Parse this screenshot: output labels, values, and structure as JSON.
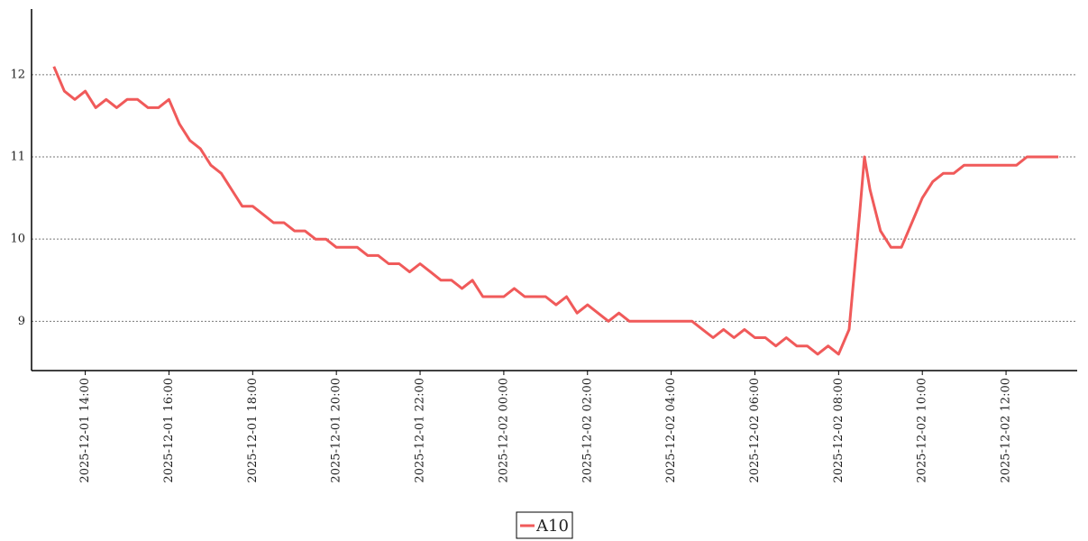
{
  "chart_data": {
    "type": "line",
    "x": [
      "2025-12-01 13:15",
      "2025-12-01 13:30",
      "2025-12-01 13:45",
      "2025-12-01 14:00",
      "2025-12-01 14:15",
      "2025-12-01 14:30",
      "2025-12-01 14:45",
      "2025-12-01 15:00",
      "2025-12-01 15:15",
      "2025-12-01 15:30",
      "2025-12-01 15:45",
      "2025-12-01 16:00",
      "2025-12-01 16:15",
      "2025-12-01 16:30",
      "2025-12-01 16:45",
      "2025-12-01 17:00",
      "2025-12-01 17:15",
      "2025-12-01 17:30",
      "2025-12-01 17:45",
      "2025-12-01 18:00",
      "2025-12-01 18:15",
      "2025-12-01 18:30",
      "2025-12-01 18:45",
      "2025-12-01 19:00",
      "2025-12-01 19:15",
      "2025-12-01 19:30",
      "2025-12-01 19:45",
      "2025-12-01 20:00",
      "2025-12-01 20:15",
      "2025-12-01 20:30",
      "2025-12-01 20:45",
      "2025-12-01 21:00",
      "2025-12-01 21:15",
      "2025-12-01 21:30",
      "2025-12-01 21:45",
      "2025-12-01 22:00",
      "2025-12-01 22:15",
      "2025-12-01 22:30",
      "2025-12-01 22:45",
      "2025-12-01 23:00",
      "2025-12-01 23:15",
      "2025-12-01 23:30",
      "2025-12-01 23:45",
      "2025-12-02 00:00",
      "2025-12-02 00:15",
      "2025-12-02 00:30",
      "2025-12-02 00:45",
      "2025-12-02 01:00",
      "2025-12-02 01:15",
      "2025-12-02 01:30",
      "2025-12-02 01:45",
      "2025-12-02 02:00",
      "2025-12-02 02:15",
      "2025-12-02 02:30",
      "2025-12-02 02:45",
      "2025-12-02 03:00",
      "2025-12-02 03:15",
      "2025-12-02 03:30",
      "2025-12-02 03:45",
      "2025-12-02 04:00",
      "2025-12-02 04:15",
      "2025-12-02 04:30",
      "2025-12-02 04:45",
      "2025-12-02 05:00",
      "2025-12-02 05:15",
      "2025-12-02 05:30",
      "2025-12-02 05:45",
      "2025-12-02 06:00",
      "2025-12-02 06:15",
      "2025-12-02 06:30",
      "2025-12-02 06:45",
      "2025-12-02 07:00",
      "2025-12-02 07:15",
      "2025-12-02 07:30",
      "2025-12-02 07:45",
      "2025-12-02 08:00",
      "2025-12-02 08:15",
      "2025-12-02 08:30",
      "2025-12-02 08:37",
      "2025-12-02 08:45",
      "2025-12-02 09:00",
      "2025-12-02 09:15",
      "2025-12-02 09:30",
      "2025-12-02 09:45",
      "2025-12-02 10:00",
      "2025-12-02 10:15",
      "2025-12-02 10:30",
      "2025-12-02 10:45",
      "2025-12-02 11:00",
      "2025-12-02 11:15",
      "2025-12-02 11:30",
      "2025-12-02 11:45",
      "2025-12-02 12:00",
      "2025-12-02 12:15",
      "2025-12-02 12:30",
      "2025-12-02 12:45",
      "2025-12-02 13:00",
      "2025-12-02 13:15"
    ],
    "series": [
      {
        "name": "A10",
        "color": "#f05a5a",
        "values": [
          12.1,
          11.8,
          11.7,
          11.8,
          11.6,
          11.7,
          11.6,
          11.7,
          11.7,
          11.6,
          11.6,
          11.7,
          11.4,
          11.2,
          11.1,
          10.9,
          10.8,
          10.6,
          10.4,
          10.4,
          10.3,
          10.2,
          10.2,
          10.1,
          10.1,
          10.0,
          10.0,
          9.9,
          9.9,
          9.9,
          9.8,
          9.8,
          9.7,
          9.7,
          9.6,
          9.7,
          9.6,
          9.5,
          9.5,
          9.4,
          9.5,
          9.3,
          9.3,
          9.3,
          9.4,
          9.3,
          9.3,
          9.3,
          9.2,
          9.3,
          9.1,
          9.2,
          9.1,
          9.0,
          9.1,
          9.0,
          9.0,
          9.0,
          9.0,
          9.0,
          9.0,
          9.0,
          8.9,
          8.8,
          8.9,
          8.8,
          8.9,
          8.8,
          8.8,
          8.7,
          8.8,
          8.7,
          8.7,
          8.6,
          8.7,
          8.6,
          8.9,
          10.3,
          11.0,
          10.6,
          10.1,
          9.9,
          9.9,
          10.2,
          10.5,
          10.7,
          10.8,
          10.8,
          10.9,
          10.9,
          10.9,
          10.9,
          10.9,
          10.9,
          11.0,
          11.0,
          11.0,
          11.0
        ]
      }
    ],
    "xlim": [
      "2025-12-01 12:43",
      "2025-12-02 13:42"
    ],
    "xticks": [
      "2025-12-01 14:00",
      "2025-12-01 16:00",
      "2025-12-01 18:00",
      "2025-12-01 20:00",
      "2025-12-01 22:00",
      "2025-12-02 00:00",
      "2025-12-02 02:00",
      "2025-12-02 04:00",
      "2025-12-02 06:00",
      "2025-12-02 08:00",
      "2025-12-02 10:00",
      "2025-12-02 12:00"
    ],
    "ylim": [
      8.4,
      12.8
    ],
    "yticks": [
      9,
      10,
      11,
      12
    ],
    "grid": true,
    "legend": "bottom"
  }
}
